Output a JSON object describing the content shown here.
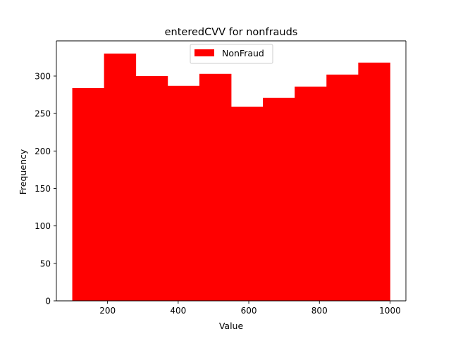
{
  "chart_data": {
    "type": "bar",
    "title": "enteredCVV for nonfrauds",
    "xlabel": "Value",
    "ylabel": "Frequency",
    "xlim": [
      55,
      1045
    ],
    "ylim": [
      0,
      347
    ],
    "xticks": [
      200,
      400,
      600,
      800,
      1000
    ],
    "yticks": [
      0,
      50,
      100,
      150,
      200,
      250,
      300
    ],
    "grid": false,
    "legend_position": "top-center",
    "bin_edges": [
      100,
      190,
      280,
      370,
      460,
      550,
      640,
      730,
      820,
      910,
      1000
    ],
    "series": [
      {
        "name": "NonFraud",
        "color": "#ff0000",
        "values": [
          284,
          330,
          300,
          287,
          303,
          259,
          271,
          286,
          302,
          318
        ]
      }
    ]
  }
}
